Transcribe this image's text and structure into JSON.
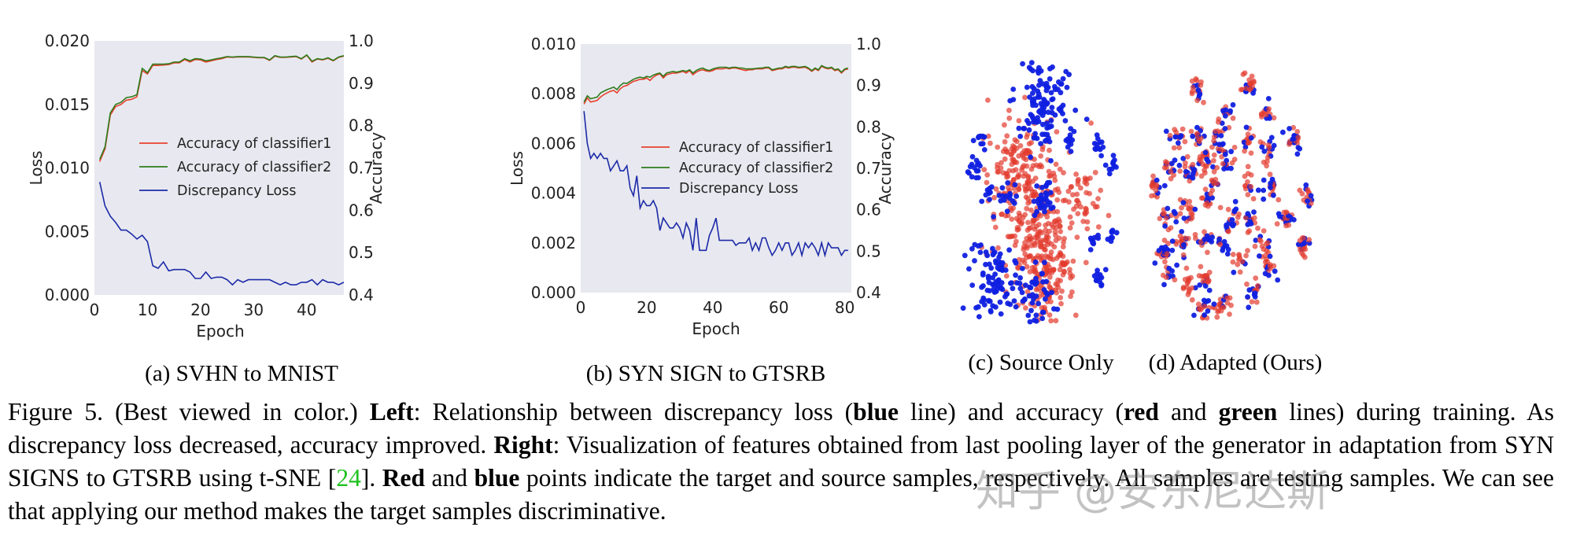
{
  "chart_data": [
    {
      "type": "line",
      "subcaption": "(a)  SVHN to MNIST",
      "xlabel": "Epoch",
      "ylabel_left": "Loss",
      "ylabel_right": "Accuracy",
      "xlim": [
        0,
        47
      ],
      "ylim_left": [
        0,
        0.02
      ],
      "ylim_right": [
        0.4,
        1.0
      ],
      "xticks": [
        "0",
        "10",
        "20",
        "30",
        "40"
      ],
      "yticks_left": [
        "0.000",
        "0.005",
        "0.010",
        "0.015",
        "0.020"
      ],
      "yticks_right": [
        "0.4",
        "0.5",
        "0.6",
        "0.7",
        "0.8",
        "0.9",
        "1.0"
      ],
      "background": "#e8e9f0",
      "legend_position": "center-right",
      "series": [
        {
          "name": "Accuracy of classifier1",
          "axis": "right",
          "color": "#e8402f",
          "values": [
            0.715,
            0.745,
            0.825,
            0.845,
            0.85,
            0.86,
            0.862,
            0.868,
            0.93,
            0.922,
            0.942,
            0.942,
            0.943,
            0.944,
            0.948,
            0.948,
            0.956,
            0.95,
            0.956,
            0.955,
            0.95,
            0.953,
            0.956,
            0.958,
            0.962,
            0.961,
            0.962,
            0.962,
            0.962,
            0.961,
            0.96,
            0.96,
            0.954,
            0.964,
            0.961,
            0.961,
            0.962,
            0.963,
            0.957,
            0.966,
            0.95,
            0.957,
            0.955,
            0.959,
            0.953,
            0.961,
            0.964
          ]
        },
        {
          "name": "Accuracy of classifier2",
          "axis": "right",
          "color": "#2e7d1e",
          "values": [
            0.72,
            0.75,
            0.83,
            0.85,
            0.855,
            0.866,
            0.868,
            0.873,
            0.935,
            0.925,
            0.945,
            0.945,
            0.945,
            0.946,
            0.95,
            0.95,
            0.958,
            0.953,
            0.958,
            0.957,
            0.953,
            0.955,
            0.958,
            0.96,
            0.963,
            0.962,
            0.963,
            0.963,
            0.963,
            0.962,
            0.961,
            0.961,
            0.955,
            0.965,
            0.962,
            0.962,
            0.963,
            0.964,
            0.958,
            0.967,
            0.952,
            0.958,
            0.956,
            0.96,
            0.954,
            0.962,
            0.965
          ]
        },
        {
          "name": "Discrepancy Loss",
          "axis": "left",
          "color": "#1c2aa8",
          "values": [
            0.0089,
            0.007,
            0.0062,
            0.0057,
            0.0051,
            0.0051,
            0.0048,
            0.0044,
            0.0047,
            0.0042,
            0.0023,
            0.0021,
            0.0026,
            0.0019,
            0.002,
            0.002,
            0.002,
            0.0018,
            0.0013,
            0.0013,
            0.0018,
            0.0013,
            0.0014,
            0.0014,
            0.0012,
            0.0008,
            0.0012,
            0.001,
            0.0012,
            0.0012,
            0.0012,
            0.0012,
            0.0012,
            0.001,
            0.0008,
            0.001,
            0.0008,
            0.0008,
            0.001,
            0.001,
            0.0012,
            0.0008,
            0.0012,
            0.001,
            0.001,
            0.0008,
            0.001
          ]
        }
      ]
    },
    {
      "type": "line",
      "subcaption": "(b)  SYN SIGN to GTSRB",
      "xlabel": "Epoch",
      "ylabel_left": "Loss",
      "ylabel_right": "Accuracy",
      "xlim": [
        0,
        82
      ],
      "ylim_left": [
        0,
        0.01
      ],
      "ylim_right": [
        0.4,
        1.0
      ],
      "xticks": [
        "0",
        "20",
        "40",
        "60",
        "80"
      ],
      "yticks_left": [
        "0.000",
        "0.002",
        "0.004",
        "0.006",
        "0.008",
        "0.010"
      ],
      "yticks_right": [
        "0.4",
        "0.5",
        "0.6",
        "0.7",
        "0.8",
        "0.9",
        "1.0"
      ],
      "background": "#e8e9f0",
      "legend_position": "center-right",
      "series": [
        {
          "name": "Accuracy of classifier1",
          "axis": "right",
          "color": "#e8402f",
          "values": [
            0.855,
            0.87,
            0.86,
            0.862,
            0.864,
            0.872,
            0.878,
            0.882,
            0.886,
            0.888,
            0.882,
            0.892,
            0.898,
            0.9,
            0.905,
            0.91,
            0.912,
            0.915,
            0.915,
            0.918,
            0.912,
            0.92,
            0.925,
            0.928,
            0.918,
            0.926,
            0.928,
            0.93,
            0.93,
            0.932,
            0.934,
            0.93,
            0.936,
            0.926,
            0.932,
            0.936,
            0.938,
            0.935,
            0.934,
            0.936,
            0.94,
            0.94,
            0.94,
            0.942,
            0.94,
            0.942,
            0.942,
            0.94,
            0.938,
            0.936,
            0.938,
            0.938,
            0.94,
            0.94,
            0.94,
            0.942,
            0.942,
            0.936,
            0.938,
            0.94,
            0.94,
            0.944,
            0.942,
            0.944,
            0.944,
            0.942,
            0.943,
            0.944,
            0.94,
            0.934,
            0.94,
            0.936,
            0.946,
            0.942,
            0.94,
            0.942,
            0.936,
            0.938,
            0.93,
            0.938,
            0.94
          ]
        },
        {
          "name": "Accuracy of classifier2",
          "axis": "right",
          "color": "#2e7d1e",
          "values": [
            0.86,
            0.875,
            0.868,
            0.87,
            0.872,
            0.882,
            0.886,
            0.89,
            0.893,
            0.896,
            0.89,
            0.9,
            0.906,
            0.905,
            0.91,
            0.915,
            0.918,
            0.92,
            0.918,
            0.922,
            0.92,
            0.925,
            0.928,
            0.93,
            0.922,
            0.93,
            0.932,
            0.934,
            0.932,
            0.934,
            0.936,
            0.934,
            0.938,
            0.93,
            0.936,
            0.94,
            0.942,
            0.938,
            0.936,
            0.94,
            0.942,
            0.944,
            0.944,
            0.944,
            0.942,
            0.944,
            0.944,
            0.942,
            0.942,
            0.94,
            0.94,
            0.94,
            0.941,
            0.942,
            0.942,
            0.944,
            0.944,
            0.938,
            0.94,
            0.942,
            0.942,
            0.946,
            0.944,
            0.946,
            0.946,
            0.944,
            0.945,
            0.946,
            0.942,
            0.936,
            0.942,
            0.938,
            0.948,
            0.944,
            0.942,
            0.944,
            0.938,
            0.94,
            0.932,
            0.94,
            0.942
          ]
        },
        {
          "name": "Discrepancy Loss",
          "axis": "left",
          "color": "#1c2aa8",
          "values": [
            0.0073,
            0.006,
            0.0054,
            0.0056,
            0.0054,
            0.0056,
            0.0054,
            0.0054,
            0.0049,
            0.0051,
            0.0053,
            0.0049,
            0.0049,
            0.0051,
            0.0042,
            0.0039,
            0.0047,
            0.0034,
            0.0037,
            0.0035,
            0.0035,
            0.0037,
            0.0034,
            0.0025,
            0.003,
            0.0028,
            0.0026,
            0.0026,
            0.0028,
            0.0026,
            0.0022,
            0.0028,
            0.0025,
            0.0017,
            0.003,
            0.0017,
            0.0017,
            0.0017,
            0.0023,
            0.0026,
            0.003,
            0.0021,
            0.0021,
            0.0021,
            0.0021,
            0.0021,
            0.0019,
            0.002,
            0.002,
            0.002,
            0.0022,
            0.0017,
            0.002,
            0.0017,
            0.0022,
            0.0022,
            0.0018,
            0.0015,
            0.0017,
            0.002,
            0.0017,
            0.002,
            0.002,
            0.0015,
            0.0017,
            0.002,
            0.0015,
            0.002,
            0.0018,
            0.002,
            0.0018,
            0.0015,
            0.002,
            0.0015,
            0.002,
            0.0018,
            0.0018,
            0.0018,
            0.0015,
            0.0017,
            0.0017
          ]
        }
      ]
    },
    {
      "type": "scatter",
      "subcaption": "(c)  Source Only",
      "colors": {
        "target": "#e23b2e",
        "source": "#1020e0"
      },
      "clusters": [
        {
          "cls": "target",
          "x": 45,
          "y": 55,
          "s": 14,
          "n": 220
        },
        {
          "cls": "target",
          "x": 55,
          "y": 80,
          "s": 9,
          "n": 160
        },
        {
          "cls": "target",
          "x": 35,
          "y": 38,
          "s": 8,
          "n": 70
        },
        {
          "cls": "target",
          "x": 80,
          "y": 55,
          "s": 6,
          "n": 40
        },
        {
          "cls": "source",
          "x": 52,
          "y": 15,
          "s": 9,
          "n": 130
        },
        {
          "cls": "source",
          "x": 22,
          "y": 85,
          "s": 8,
          "n": 100
        },
        {
          "cls": "source",
          "x": 45,
          "y": 92,
          "s": 7,
          "n": 50
        },
        {
          "cls": "source",
          "x": 52,
          "y": 53,
          "s": 3,
          "n": 30
        },
        {
          "cls": "source",
          "x": 30,
          "y": 52,
          "s": 3,
          "n": 15
        },
        {
          "cls": "source",
          "x": 8,
          "y": 42,
          "s": 2,
          "n": 15
        },
        {
          "cls": "source",
          "x": 12,
          "y": 30,
          "s": 2,
          "n": 10
        },
        {
          "cls": "source",
          "x": 17,
          "y": 51,
          "s": 2,
          "n": 10
        },
        {
          "cls": "source",
          "x": 88,
          "y": 32,
          "s": 2,
          "n": 12
        },
        {
          "cls": "source",
          "x": 97,
          "y": 40,
          "s": 2,
          "n": 10
        },
        {
          "cls": "source",
          "x": 97,
          "y": 66,
          "s": 1.5,
          "n": 8
        },
        {
          "cls": "source",
          "x": 88,
          "y": 82,
          "s": 2,
          "n": 12
        },
        {
          "cls": "source",
          "x": 70,
          "y": 30,
          "s": 2,
          "n": 12
        },
        {
          "cls": "source",
          "x": 85,
          "y": 70,
          "s": 2,
          "n": 10
        }
      ]
    },
    {
      "type": "scatter",
      "subcaption": "(d)  Adapted (Ours)",
      "colors": {
        "target": "#e23b2e",
        "source": "#1020e0"
      },
      "clusters": [
        {
          "x": 27,
          "y": 8
        },
        {
          "x": 57,
          "y": 7
        },
        {
          "x": 43,
          "y": 17
        },
        {
          "x": 68,
          "y": 18
        },
        {
          "x": 15,
          "y": 27
        },
        {
          "x": 28,
          "y": 27
        },
        {
          "x": 40,
          "y": 29
        },
        {
          "x": 56,
          "y": 29
        },
        {
          "x": 68,
          "y": 33
        },
        {
          "x": 83,
          "y": 28
        },
        {
          "x": 10,
          "y": 39
        },
        {
          "x": 22,
          "y": 41
        },
        {
          "x": 32,
          "y": 37
        },
        {
          "x": 45,
          "y": 38
        },
        {
          "x": 3,
          "y": 47
        },
        {
          "x": 36,
          "y": 46
        },
        {
          "x": 56,
          "y": 46
        },
        {
          "x": 70,
          "y": 48
        },
        {
          "x": 91,
          "y": 50
        },
        {
          "x": 33,
          "y": 54
        },
        {
          "x": 20,
          "y": 56
        },
        {
          "x": 10,
          "y": 59
        },
        {
          "x": 48,
          "y": 60
        },
        {
          "x": 58,
          "y": 60
        },
        {
          "x": 78,
          "y": 60
        },
        {
          "x": 18,
          "y": 69
        },
        {
          "x": 30,
          "y": 68
        },
        {
          "x": 40,
          "y": 70
        },
        {
          "x": 65,
          "y": 70
        },
        {
          "x": 88,
          "y": 71
        },
        {
          "x": 8,
          "y": 73
        },
        {
          "x": 52,
          "y": 78
        },
        {
          "x": 70,
          "y": 80
        },
        {
          "x": 10,
          "y": 82
        },
        {
          "x": 22,
          "y": 86
        },
        {
          "x": 32,
          "y": 84
        },
        {
          "x": 60,
          "y": 89
        },
        {
          "x": 31,
          "y": 96
        },
        {
          "x": 42,
          "y": 96
        }
      ]
    }
  ],
  "caption": [
    {
      "t": "Figure 5. (Best viewed in color.)  ",
      "s": "n"
    },
    {
      "t": "Left",
      "s": "b"
    },
    {
      "t": ":  Relationship between discrepancy loss (",
      "s": "n"
    },
    {
      "t": "blue",
      "s": "b"
    },
    {
      "t": " line) and accuracy (",
      "s": "n"
    },
    {
      "t": "red",
      "s": "b"
    },
    {
      "t": " and ",
      "s": "n"
    },
    {
      "t": "green",
      "s": "b"
    },
    {
      "t": " lines) during training.  As discrepancy loss decreased, accuracy improved.  ",
      "s": "n"
    },
    {
      "t": "Right",
      "s": "b"
    },
    {
      "t": ":  Visualization of features obtained from last pooling layer of the generator in adaptation from SYN SIGNS to GTSRB using t-SNE [",
      "s": "n"
    },
    {
      "t": "24",
      "s": "ref"
    },
    {
      "t": "].  ",
      "s": "n"
    },
    {
      "t": "Red",
      "s": "b"
    },
    {
      "t": " and ",
      "s": "n"
    },
    {
      "t": "blue",
      "s": "b"
    },
    {
      "t": " points indicate the target and source samples, respectively. All samples are testing samples. We can see that applying our method makes the target samples discriminative.",
      "s": "n"
    }
  ],
  "watermark": "知乎 @安东尼达斯"
}
